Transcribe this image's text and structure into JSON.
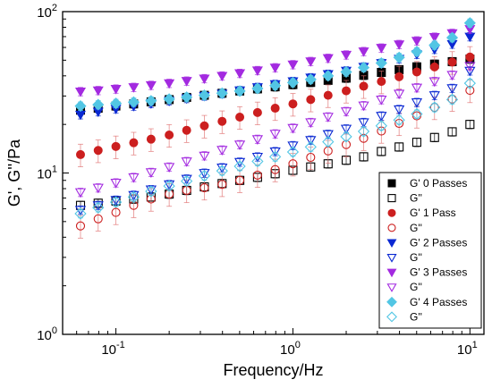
{
  "chart_data": {
    "type": "scatter",
    "title": "",
    "xlabel": "Frequency/Hz",
    "ylabel": "G', G''/Pa",
    "x_scale": "log",
    "y_scale": "log",
    "xlim": [
      0.05,
      12
    ],
    "ylim": [
      1,
      100
    ],
    "x_ticks": [
      {
        "value": 0.1,
        "base": "10",
        "exp": "-1"
      },
      {
        "value": 1,
        "base": "10",
        "exp": "0"
      },
      {
        "value": 10,
        "base": "10",
        "exp": "1"
      }
    ],
    "y_ticks": [
      {
        "value": 1,
        "base": "10",
        "exp": "0"
      },
      {
        "value": 10,
        "base": "10",
        "exp": "1"
      },
      {
        "value": 100,
        "base": "10",
        "exp": "2"
      }
    ],
    "legend_position": "bottom-right",
    "x": [
      0.0631,
      0.0794,
      0.1,
      0.126,
      0.158,
      0.2,
      0.251,
      0.316,
      0.398,
      0.501,
      0.631,
      0.794,
      1.0,
      1.26,
      1.58,
      2.0,
      2.51,
      3.16,
      3.98,
      5.01,
      6.31,
      7.94,
      10.0
    ],
    "series": [
      {
        "name": "G' 0 Passes",
        "marker": "square",
        "filled": true,
        "color": "#000000",
        "values": [
          24.5,
          25.2,
          26.0,
          26.8,
          27.6,
          28.5,
          29.4,
          30.3,
          31.2,
          32.2,
          33.2,
          34.2,
          35.3,
          36.4,
          37.5,
          38.7,
          40.3,
          42.0,
          43.7,
          45.5,
          47.3,
          49.0,
          50.8
        ]
      },
      {
        "name": "G''",
        "marker": "square",
        "filled": false,
        "color": "#000000",
        "values": [
          6.3,
          6.5,
          6.7,
          6.9,
          7.1,
          7.4,
          7.8,
          8.2,
          8.6,
          9.0,
          9.4,
          9.9,
          10.4,
          10.9,
          11.4,
          12.0,
          12.6,
          13.6,
          14.5,
          15.5,
          16.6,
          18.0,
          20.0
        ]
      },
      {
        "name": "G' 1 Pass",
        "marker": "circle",
        "filled": true,
        "color": "#cc1f1f",
        "values": [
          13.0,
          13.8,
          14.6,
          15.4,
          16.2,
          17.2,
          18.4,
          19.6,
          20.9,
          22.2,
          23.7,
          25.2,
          26.8,
          28.5,
          30.3,
          32.3,
          34.5,
          36.9,
          39.5,
          42.3,
          45.4,
          48.7,
          52.3
        ]
      },
      {
        "name": "G''",
        "marker": "circle",
        "filled": false,
        "color": "#cc1f1f",
        "values": [
          4.7,
          5.2,
          5.7,
          6.3,
          6.9,
          7.4,
          7.8,
          8.1,
          8.5,
          9.0,
          9.7,
          10.5,
          11.4,
          12.5,
          13.7,
          15.0,
          16.4,
          18.2,
          20.3,
          22.6,
          25.5,
          28.7,
          32.5
        ]
      },
      {
        "name": "G' 2 Passes",
        "marker": "triangle-down",
        "filled": true,
        "color": "#0a28d2",
        "values": [
          23.0,
          24.0,
          25.0,
          26.0,
          27.0,
          28.0,
          29.0,
          30.0,
          31.0,
          32.5,
          34.0,
          35.5,
          37.0,
          39.0,
          41.0,
          43.0,
          45.5,
          48.0,
          51.0,
          54.5,
          58.5,
          63.0,
          70.0
        ]
      },
      {
        "name": "G''",
        "marker": "triangle-down",
        "filled": false,
        "color": "#0a28d2",
        "values": [
          5.9,
          6.3,
          6.8,
          7.3,
          7.9,
          8.5,
          9.2,
          10.0,
          10.8,
          11.7,
          12.6,
          13.6,
          14.8,
          16.0,
          17.4,
          18.8,
          20.6,
          22.6,
          24.8,
          27.4,
          30.3,
          33.5,
          43.0
        ]
      },
      {
        "name": "G' 3 Passes",
        "marker": "triangle-down",
        "filled": true,
        "color": "#a32ae0",
        "values": [
          32.0,
          32.5,
          33.2,
          34.0,
          35.0,
          36.0,
          37.2,
          38.5,
          40.0,
          41.5,
          43.2,
          45.0,
          47.0,
          49.2,
          51.5,
          54.0,
          56.7,
          59.6,
          62.7,
          66.0,
          69.6,
          73.5,
          78.0
        ]
      },
      {
        "name": "G''",
        "marker": "triangle-down",
        "filled": false,
        "color": "#a32ae0",
        "values": [
          7.6,
          8.1,
          8.7,
          9.4,
          10.1,
          10.9,
          11.8,
          12.8,
          13.9,
          15.0,
          16.2,
          17.5,
          19.0,
          20.6,
          22.3,
          24.1,
          26.2,
          28.5,
          31.0,
          33.8,
          37.0,
          40.5,
          46.0
        ]
      },
      {
        "name": "G' 4 Passes",
        "marker": "diamond",
        "filled": true,
        "color": "#52c6e4",
        "values": [
          26.0,
          26.5,
          27.0,
          27.5,
          28.0,
          28.7,
          29.5,
          30.3,
          31.2,
          32.2,
          33.4,
          34.8,
          36.3,
          38.0,
          40.0,
          42.3,
          45.0,
          48.0,
          52.0,
          56.5,
          62.0,
          69.0,
          85.0
        ]
      },
      {
        "name": "G''",
        "marker": "diamond",
        "filled": false,
        "color": "#52c6e4",
        "values": [
          5.6,
          6.1,
          6.6,
          7.1,
          7.7,
          8.3,
          8.9,
          9.6,
          10.3,
          11.0,
          11.8,
          12.6,
          13.5,
          14.5,
          15.6,
          16.8,
          18.1,
          19.6,
          21.3,
          23.2,
          25.5,
          28.5,
          36.0
        ]
      }
    ]
  }
}
